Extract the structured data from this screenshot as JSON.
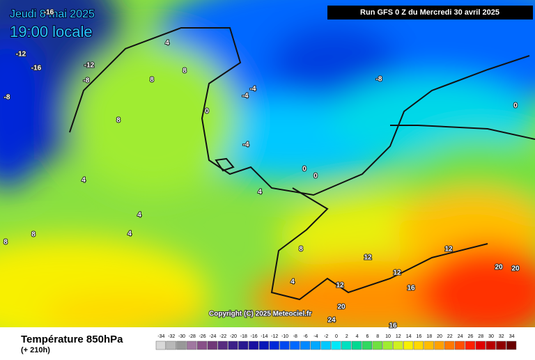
{
  "header": {
    "date": "Jeudi 8 mai 2025",
    "time": "19:00 locale",
    "run": "Run GFS 0 Z du Mercredi 30 avril 2025"
  },
  "copyright": "Copyright (C) 2025 Meteociel.fr",
  "footer": {
    "title": "Température 850hPa",
    "lead": "(+ 210h)"
  },
  "scale": {
    "values": [
      -34,
      -32,
      -30,
      -28,
      -26,
      -24,
      -22,
      -20,
      -18,
      -16,
      -14,
      -12,
      -10,
      -8,
      -6,
      -4,
      -2,
      0,
      2,
      4,
      6,
      8,
      10,
      12,
      14,
      16,
      18,
      20,
      22,
      24,
      26,
      28,
      30,
      32,
      34
    ],
    "colors": [
      "#d8d8d8",
      "#b8b8b8",
      "#989898",
      "#a078a0",
      "#885088",
      "#703878",
      "#582c80",
      "#3c2088",
      "#281890",
      "#1810a0",
      "#0818b8",
      "#0028d8",
      "#0048f0",
      "#0068ff",
      "#0088ff",
      "#00a8ff",
      "#00c8ff",
      "#00e8f8",
      "#00e0c0",
      "#00d890",
      "#30d860",
      "#70e040",
      "#a0ec30",
      "#d0f020",
      "#f8f000",
      "#ffd800",
      "#ffbc00",
      "#ffa000",
      "#ff7800",
      "#ff5000",
      "#ff2000",
      "#e00000",
      "#b80000",
      "#900000",
      "#680000"
    ]
  },
  "contour_labels": [
    -16,
    -12,
    -16,
    -12,
    -8,
    -8,
    -4,
    4,
    8,
    8,
    0,
    -4,
    -4,
    -8,
    8,
    4,
    0,
    0,
    4,
    4,
    4,
    8,
    8,
    8,
    12,
    12,
    12,
    16,
    20,
    20,
    20,
    24,
    16,
    12,
    4,
    0
  ]
}
